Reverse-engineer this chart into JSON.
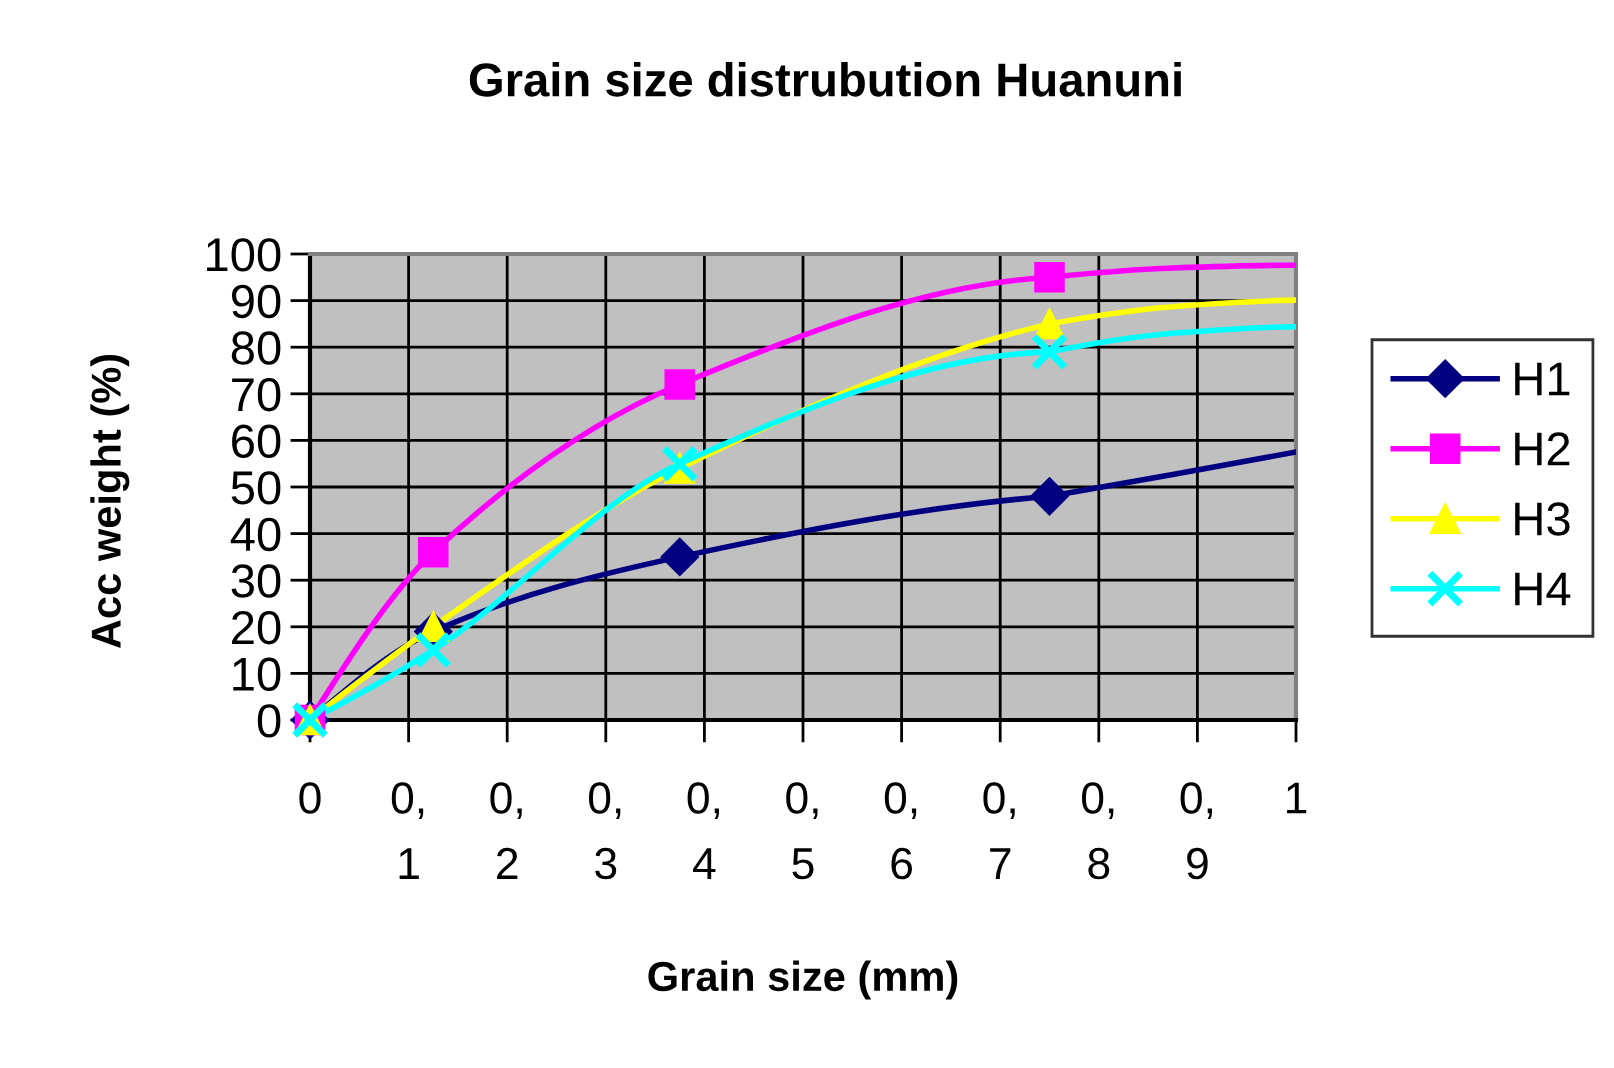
{
  "chart_data": {
    "type": "line",
    "title": "Grain size distrubution Huanuni",
    "xlabel": "Grain size (mm)",
    "ylabel": "Acc weight (%)",
    "xlim": [
      0,
      1
    ],
    "xticks": [
      0,
      {
        "value": 0.1,
        "label": "0,\n1"
      },
      {
        "value": 0.2,
        "label": "0,\n2"
      },
      {
        "value": 0.3,
        "label": "0,\n3"
      },
      {
        "value": 0.4,
        "label": "0,\n4"
      },
      {
        "value": 0.5,
        "label": "0,\n5"
      },
      {
        "value": 0.6,
        "label": "0,\n6"
      },
      {
        "value": 0.7,
        "label": "0,\n7"
      },
      {
        "value": 0.8,
        "label": "0,\n8"
      },
      {
        "value": 0.9,
        "label": "0,\n9"
      },
      1
    ],
    "ylim": [
      0,
      100
    ],
    "yticks": [
      0,
      10,
      20,
      30,
      40,
      50,
      60,
      70,
      80,
      90,
      100
    ],
    "grid": true,
    "legend": "right",
    "line_style": "solid",
    "series": [
      {
        "name": "H1",
        "color": "#000080",
        "marker": "diamond",
        "x": [
          0,
          0.125,
          0.375,
          0.75
        ],
        "values": [
          0,
          19,
          35,
          48
        ]
      },
      {
        "name": "H2",
        "color": "#ff00ff",
        "marker": "square",
        "x": [
          0,
          0.125,
          0.375,
          0.75
        ],
        "values": [
          0,
          36,
          72,
          95
        ]
      },
      {
        "name": "H3",
        "color": "#ffff00",
        "marker": "triangle",
        "x": [
          0,
          0.125,
          0.375,
          0.75
        ],
        "values": [
          0,
          20,
          54,
          85
        ]
      },
      {
        "name": "H4",
        "color": "#00ffff",
        "marker": "cross",
        "x": [
          0,
          0.125,
          0.375,
          0.75
        ],
        "values": [
          0,
          15,
          55,
          79
        ]
      },
      {
        "color": "#000080",
        "marker": "none",
        "x": [
          0.75,
          0.875,
          1
        ],
        "values": [
          48,
          52.7,
          57.5
        ]
      },
      {
        "color": "#ff00ff",
        "marker": "none",
        "x": [
          0.75,
          0.875,
          1
        ],
        "values": [
          95,
          97,
          97.6
        ]
      },
      {
        "color": "#ffff00",
        "marker": "none",
        "x": [
          0.75,
          0.875,
          1
        ],
        "values": [
          85,
          88.7,
          90.1
        ]
      },
      {
        "color": "#00ffff",
        "marker": "none",
        "x": [
          0.75,
          0.875,
          1
        ],
        "values": [
          79,
          83,
          84.4
        ]
      }
    ]
  }
}
